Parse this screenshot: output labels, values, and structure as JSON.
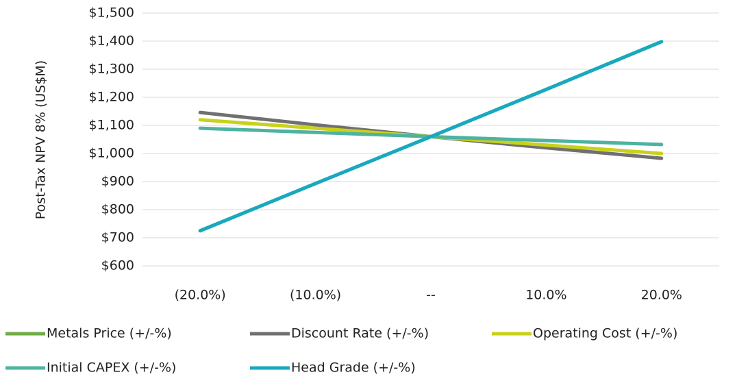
{
  "chart_data": {
    "type": "line",
    "y_label": "Post-Tax NPV 8% (US$M)",
    "categories": [
      "(20.0%)",
      "(10.0%)",
      "--",
      "10.0%",
      "20.0%"
    ],
    "series": [
      {
        "name": "Metals Price (+/-%)",
        "color": "#70ad47",
        "values": [
          725,
          893,
          1060,
          1228,
          1398
        ]
      },
      {
        "name": "Discount Rate (+/-%)",
        "color": "#707070",
        "values": [
          1146,
          1102,
          1060,
          1020,
          983
        ]
      },
      {
        "name": "Operating Cost (+/-%)",
        "color": "#c9d11a",
        "values": [
          1120,
          1090,
          1060,
          1030,
          1000
        ]
      },
      {
        "name": "Initial CAPEX (+/-%)",
        "color": "#4db3a0",
        "values": [
          1090,
          1075,
          1060,
          1046,
          1032
        ]
      },
      {
        "name": "Head Grade (+/-%)",
        "color": "#17a9c1",
        "values": [
          725,
          893,
          1060,
          1228,
          1398
        ]
      }
    ],
    "ylim": [
      600,
      1500
    ],
    "yticks": [
      {
        "value": 600,
        "label": "$600"
      },
      {
        "value": 700,
        "label": "$700"
      },
      {
        "value": 800,
        "label": "$800"
      },
      {
        "value": 900,
        "label": "$900"
      },
      {
        "value": 1000,
        "label": "$1,000"
      },
      {
        "value": 1100,
        "label": "$1,100"
      },
      {
        "value": 1200,
        "label": "$1,200"
      },
      {
        "value": 1300,
        "label": "$1,300"
      },
      {
        "value": 1400,
        "label": "$1,400"
      },
      {
        "value": 1500,
        "label": "$1,500"
      }
    ],
    "grid": true,
    "legend": "bottom"
  }
}
